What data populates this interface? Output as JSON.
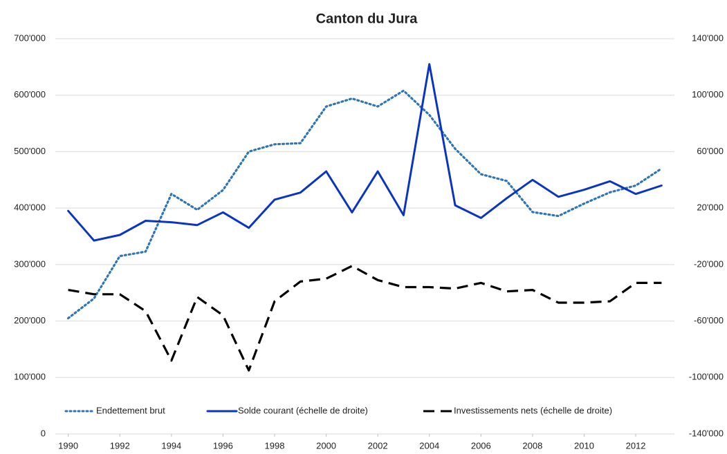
{
  "chart_data": {
    "type": "line",
    "title": "Canton du Jura",
    "x": [
      1990,
      1991,
      1992,
      1993,
      1994,
      1995,
      1996,
      1997,
      1998,
      1999,
      2000,
      2001,
      2002,
      2003,
      2004,
      2005,
      2006,
      2007,
      2008,
      2009,
      2010,
      2011,
      2012,
      2013
    ],
    "xlim": [
      1989.5,
      2013.5
    ],
    "xticks": [
      1990,
      1992,
      1994,
      1996,
      1998,
      2000,
      2002,
      2004,
      2006,
      2008,
      2010,
      2012
    ],
    "ylim": [
      0,
      700000
    ],
    "yticks": [
      0,
      {
        "value": 100000,
        "label": "100'000"
      },
      {
        "value": 200000,
        "label": "200'000"
      },
      {
        "value": 300000,
        "label": "300'000"
      },
      {
        "value": 400000,
        "label": "400'000"
      },
      {
        "value": 500000,
        "label": "500'000"
      },
      {
        "value": 600000,
        "label": "600'000"
      },
      {
        "value": 700000,
        "label": "700'000"
      }
    ],
    "y2lim": [
      -140000,
      140000
    ],
    "y2ticks": [
      {
        "value": -140000,
        "label": "-140'000"
      },
      {
        "value": -100000,
        "label": "-100'000"
      },
      {
        "value": -60000,
        "label": "-60'000"
      },
      {
        "value": -20000,
        "label": "-20'000"
      },
      {
        "value": 20000,
        "label": "20'000"
      },
      {
        "value": 60000,
        "label": "60'000"
      },
      {
        "value": 100000,
        "label": "100'000"
      },
      {
        "value": 140000,
        "label": "140'000"
      }
    ],
    "grid": true,
    "legend": "bottom",
    "series": [
      {
        "name": "Endettement brut",
        "color": "#2e75b6",
        "style": "dotted",
        "values": [
          205000,
          240000,
          315000,
          323000,
          425000,
          397000,
          432000,
          500000,
          513000,
          515000,
          580000,
          594000,
          580000,
          608000,
          565000,
          505000,
          460000,
          448000,
          393000,
          386000,
          408000,
          428000,
          440000,
          470000
        ]
      },
      {
        "name": "Solde courant (échelle de droite)",
        "color": "#0a35c2",
        "style": "solid",
        "axis": "y2",
        "values": [
          18000,
          -3000,
          1000,
          11000,
          10000,
          8000,
          17000,
          6000,
          26000,
          31000,
          46000,
          17000,
          46000,
          15000,
          122000,
          22000,
          13000,
          27000,
          40000,
          28000,
          33000,
          39000,
          30000,
          36000
        ]
      },
      {
        "name": "Investissements nets (échelle de droite)",
        "color": "#000000",
        "style": "dashed",
        "axis": "y2",
        "values": [
          -38000,
          -41000,
          -41000,
          -53000,
          -88000,
          -43000,
          -56000,
          -95000,
          -46000,
          -32000,
          -30000,
          -21000,
          -31000,
          -36000,
          -36000,
          -37000,
          -33000,
          -39000,
          -38000,
          -47000,
          -47000,
          -46000,
          -33000,
          -33000
        ]
      }
    ]
  }
}
